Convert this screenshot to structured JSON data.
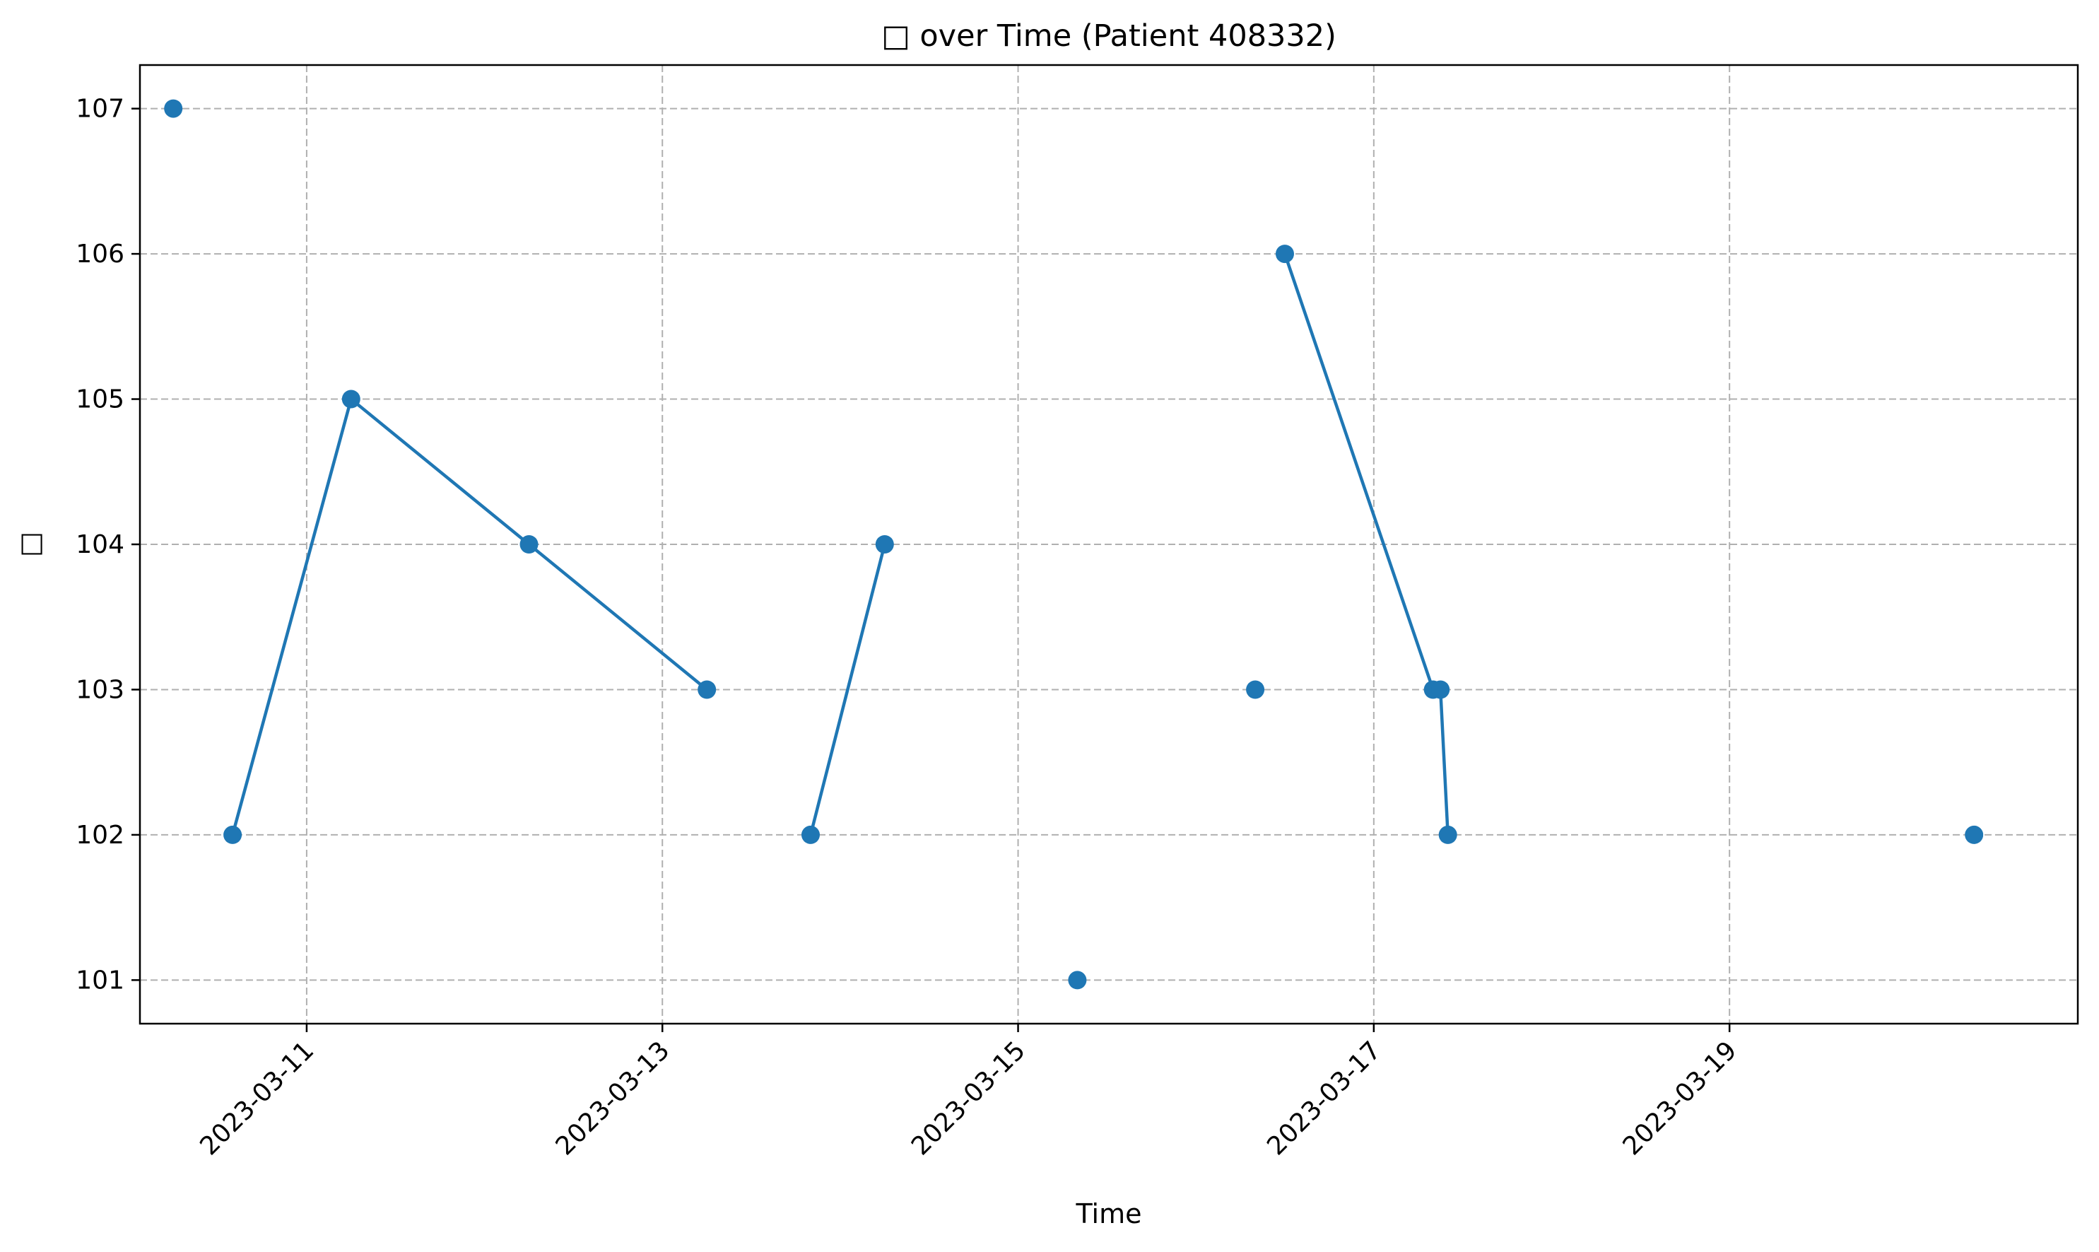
{
  "chart_data": {
    "type": "line",
    "title": "□ over Time (Patient 408332)",
    "xlabel": "Time",
    "ylabel": "□",
    "x_axis_type": "date",
    "xlim": [
      "2023-03-10 01:30",
      "2023-03-20 23:00"
    ],
    "ylim": [
      100.7,
      107.3
    ],
    "yticks": [
      101,
      102,
      103,
      104,
      105,
      106,
      107
    ],
    "xticks": [
      "2023-03-11",
      "2023-03-13",
      "2023-03-15",
      "2023-03-17",
      "2023-03-19"
    ],
    "grid": true,
    "grid_style": "dashed",
    "legend": false,
    "series": [
      {
        "color": "#1f77b4",
        "marker": "circle",
        "points": [
          {
            "t": "2023-03-10 06:00",
            "y": 107
          },
          {
            "t": "2023-03-10 14:00",
            "y": 102
          },
          {
            "t": "2023-03-11 06:00",
            "y": 105
          },
          {
            "t": "2023-03-12 06:00",
            "y": 104
          },
          {
            "t": "2023-03-13 06:00",
            "y": 103
          },
          {
            "t": "2023-03-13 20:00",
            "y": 102
          },
          {
            "t": "2023-03-14 06:00",
            "y": 104
          },
          {
            "t": "2023-03-15 08:00",
            "y": 101
          },
          {
            "t": "2023-03-16 08:00",
            "y": 103
          },
          {
            "t": "2023-03-16 12:00",
            "y": 106
          },
          {
            "t": "2023-03-17 08:00",
            "y": 103
          },
          {
            "t": "2023-03-17 09:00",
            "y": 103
          },
          {
            "t": "2023-03-17 10:00",
            "y": 102
          },
          {
            "t": "2023-03-20 09:00",
            "y": 102
          }
        ],
        "segments": [
          [
            1,
            2,
            3,
            4
          ],
          [
            5,
            6
          ],
          [
            9,
            10,
            11,
            12
          ]
        ]
      }
    ]
  }
}
